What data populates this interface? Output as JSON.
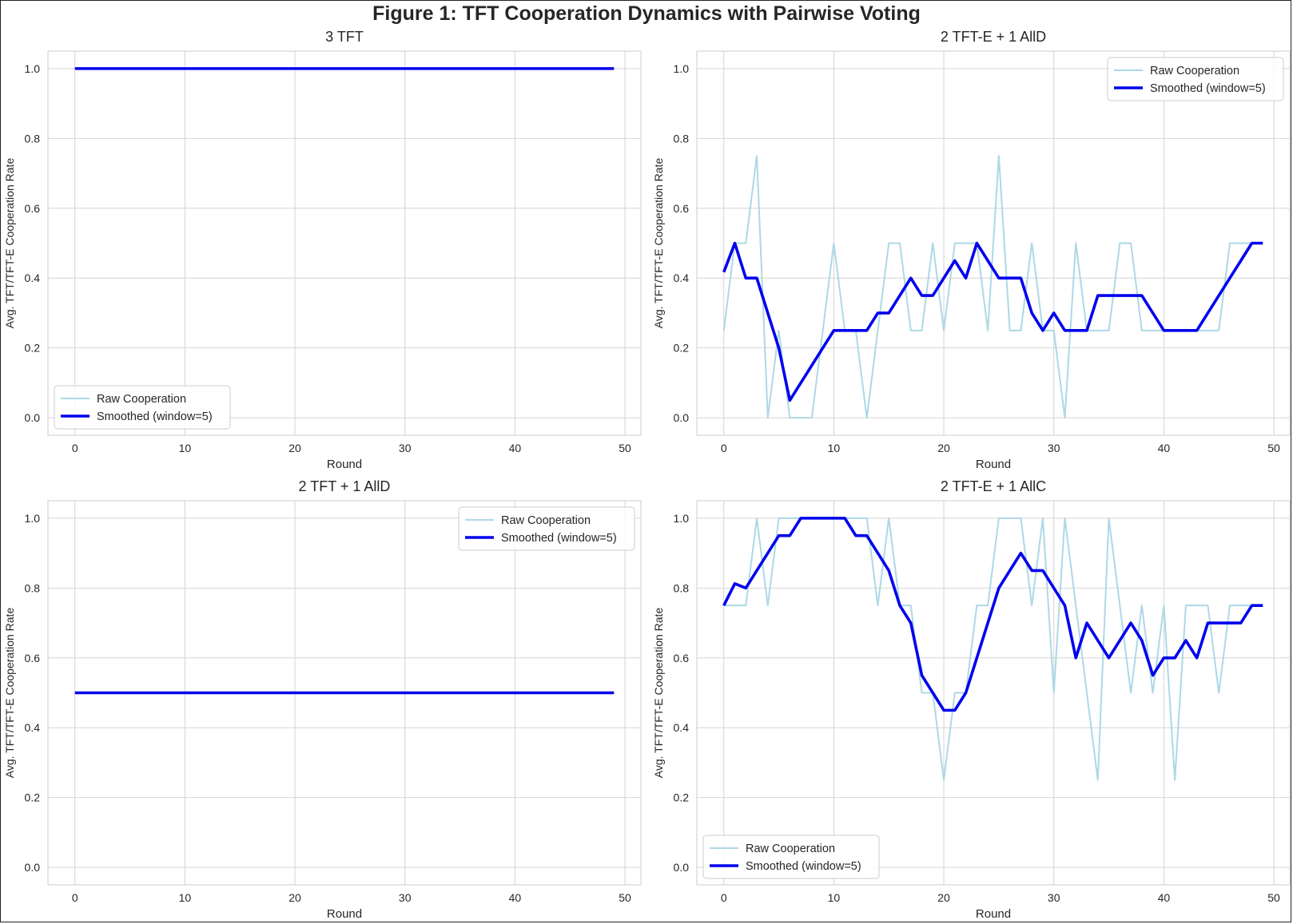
{
  "figure_title": "Figure 1: TFT Cooperation Dynamics with Pairwise Voting",
  "colors": {
    "raw": "#ADD8E6",
    "smoothed": "#0000EE",
    "grid": "#d4d4d4",
    "spine": "#cccccc",
    "text": "#262626"
  },
  "chart_data": [
    {
      "type": "line",
      "title": "3 TFT",
      "xlabel": "Round",
      "ylabel": "Avg. TFT/TFT-E Cooperation Rate",
      "xlim": [
        -2.45,
        51.45
      ],
      "ylim": [
        -0.05,
        1.05
      ],
      "xticks": [
        0,
        10,
        20,
        30,
        40,
        50
      ],
      "yticks": [
        0.0,
        0.2,
        0.4,
        0.6,
        0.8,
        1.0
      ],
      "grid": true,
      "legend_position": "lower left",
      "x": [
        0,
        1,
        2,
        3,
        4,
        5,
        6,
        7,
        8,
        9,
        10,
        11,
        12,
        13,
        14,
        15,
        16,
        17,
        18,
        19,
        20,
        21,
        22,
        23,
        24,
        25,
        26,
        27,
        28,
        29,
        30,
        31,
        32,
        33,
        34,
        35,
        36,
        37,
        38,
        39,
        40,
        41,
        42,
        43,
        44,
        45,
        46,
        47,
        48,
        49
      ],
      "series": [
        {
          "name": "Raw Cooperation",
          "values": [
            1,
            1,
            1,
            1,
            1,
            1,
            1,
            1,
            1,
            1,
            1,
            1,
            1,
            1,
            1,
            1,
            1,
            1,
            1,
            1,
            1,
            1,
            1,
            1,
            1,
            1,
            1,
            1,
            1,
            1,
            1,
            1,
            1,
            1,
            1,
            1,
            1,
            1,
            1,
            1,
            1,
            1,
            1,
            1,
            1,
            1,
            1,
            1,
            1,
            1
          ]
        },
        {
          "name": "Smoothed (window=5)",
          "values": [
            1,
            1,
            1,
            1,
            1,
            1,
            1,
            1,
            1,
            1,
            1,
            1,
            1,
            1,
            1,
            1,
            1,
            1,
            1,
            1,
            1,
            1,
            1,
            1,
            1,
            1,
            1,
            1,
            1,
            1,
            1,
            1,
            1,
            1,
            1,
            1,
            1,
            1,
            1,
            1,
            1,
            1,
            1,
            1,
            1,
            1,
            1,
            1,
            1,
            1
          ]
        }
      ]
    },
    {
      "type": "line",
      "title": "2 TFT-E + 1 AllD",
      "xlabel": "Round",
      "ylabel": "Avg. TFT/TFT-E Cooperation Rate",
      "xlim": [
        -2.45,
        51.45
      ],
      "ylim": [
        -0.05,
        1.05
      ],
      "xticks": [
        0,
        10,
        20,
        30,
        40,
        50
      ],
      "yticks": [
        0.0,
        0.2,
        0.4,
        0.6,
        0.8,
        1.0
      ],
      "grid": true,
      "legend_position": "upper right",
      "x": [
        0,
        1,
        2,
        3,
        4,
        5,
        6,
        7,
        8,
        9,
        10,
        11,
        12,
        13,
        14,
        15,
        16,
        17,
        18,
        19,
        20,
        21,
        22,
        23,
        24,
        25,
        26,
        27,
        28,
        29,
        30,
        31,
        32,
        33,
        34,
        35,
        36,
        37,
        38,
        39,
        40,
        41,
        42,
        43,
        44,
        45,
        46,
        47,
        48,
        49
      ],
      "series": [
        {
          "name": "Raw Cooperation",
          "values": [
            0.25,
            0.5,
            0.5,
            0.75,
            0,
            0.25,
            0,
            0,
            0,
            0.25,
            0.5,
            0.25,
            0.25,
            0,
            0.25,
            0.5,
            0.5,
            0.25,
            0.25,
            0.5,
            0.25,
            0.5,
            0.5,
            0.5,
            0.25,
            0.75,
            0.25,
            0.25,
            0.5,
            0.25,
            0.25,
            0,
            0.5,
            0.25,
            0.25,
            0.25,
            0.5,
            0.5,
            0.25,
            0.25,
            0.25,
            0.25,
            0.25,
            0.25,
            0.25,
            0.25,
            0.5,
            0.5,
            0.5,
            0.5
          ]
        },
        {
          "name": "Smoothed (window=5)",
          "values": [
            0.417,
            0.5,
            0.4,
            0.4,
            0.3,
            0.2,
            0.05,
            0.1,
            0.15,
            0.2,
            0.25,
            0.25,
            0.25,
            0.25,
            0.3,
            0.3,
            0.35,
            0.4,
            0.35,
            0.35,
            0.4,
            0.45,
            0.4,
            0.5,
            0.45,
            0.4,
            0.4,
            0.4,
            0.3,
            0.25,
            0.3,
            0.25,
            0.25,
            0.25,
            0.35,
            0.35,
            0.35,
            0.35,
            0.35,
            0.3,
            0.25,
            0.25,
            0.25,
            0.25,
            0.3,
            0.35,
            0.4,
            0.45,
            0.5,
            0.5
          ]
        }
      ]
    },
    {
      "type": "line",
      "title": "2 TFT + 1 AllD",
      "xlabel": "Round",
      "ylabel": "Avg. TFT/TFT-E Cooperation Rate",
      "xlim": [
        -2.45,
        51.45
      ],
      "ylim": [
        -0.05,
        1.05
      ],
      "xticks": [
        0,
        10,
        20,
        30,
        40,
        50
      ],
      "yticks": [
        0.0,
        0.2,
        0.4,
        0.6,
        0.8,
        1.0
      ],
      "grid": true,
      "legend_position": "upper right",
      "x": [
        0,
        1,
        2,
        3,
        4,
        5,
        6,
        7,
        8,
        9,
        10,
        11,
        12,
        13,
        14,
        15,
        16,
        17,
        18,
        19,
        20,
        21,
        22,
        23,
        24,
        25,
        26,
        27,
        28,
        29,
        30,
        31,
        32,
        33,
        34,
        35,
        36,
        37,
        38,
        39,
        40,
        41,
        42,
        43,
        44,
        45,
        46,
        47,
        48,
        49
      ],
      "series": [
        {
          "name": "Raw Cooperation",
          "values": [
            0.5,
            0.5,
            0.5,
            0.5,
            0.5,
            0.5,
            0.5,
            0.5,
            0.5,
            0.5,
            0.5,
            0.5,
            0.5,
            0.5,
            0.5,
            0.5,
            0.5,
            0.5,
            0.5,
            0.5,
            0.5,
            0.5,
            0.5,
            0.5,
            0.5,
            0.5,
            0.5,
            0.5,
            0.5,
            0.5,
            0.5,
            0.5,
            0.5,
            0.5,
            0.5,
            0.5,
            0.5,
            0.5,
            0.5,
            0.5,
            0.5,
            0.5,
            0.5,
            0.5,
            0.5,
            0.5,
            0.5,
            0.5,
            0.5,
            0.5
          ]
        },
        {
          "name": "Smoothed (window=5)",
          "values": [
            0.5,
            0.5,
            0.5,
            0.5,
            0.5,
            0.5,
            0.5,
            0.5,
            0.5,
            0.5,
            0.5,
            0.5,
            0.5,
            0.5,
            0.5,
            0.5,
            0.5,
            0.5,
            0.5,
            0.5,
            0.5,
            0.5,
            0.5,
            0.5,
            0.5,
            0.5,
            0.5,
            0.5,
            0.5,
            0.5,
            0.5,
            0.5,
            0.5,
            0.5,
            0.5,
            0.5,
            0.5,
            0.5,
            0.5,
            0.5,
            0.5,
            0.5,
            0.5,
            0.5,
            0.5,
            0.5,
            0.5,
            0.5,
            0.5,
            0.5
          ]
        }
      ]
    },
    {
      "type": "line",
      "title": "2 TFT-E + 1 AllC",
      "xlabel": "Round",
      "ylabel": "Avg. TFT/TFT-E Cooperation Rate",
      "xlim": [
        -2.45,
        51.45
      ],
      "ylim": [
        -0.05,
        1.05
      ],
      "xticks": [
        0,
        10,
        20,
        30,
        40,
        50
      ],
      "yticks": [
        0.0,
        0.2,
        0.4,
        0.6,
        0.8,
        1.0
      ],
      "grid": true,
      "legend_position": "lower left",
      "x": [
        0,
        1,
        2,
        3,
        4,
        5,
        6,
        7,
        8,
        9,
        10,
        11,
        12,
        13,
        14,
        15,
        16,
        17,
        18,
        19,
        20,
        21,
        22,
        23,
        24,
        25,
        26,
        27,
        28,
        29,
        30,
        31,
        32,
        33,
        34,
        35,
        36,
        37,
        38,
        39,
        40,
        41,
        42,
        43,
        44,
        45,
        46,
        47,
        48,
        49
      ],
      "series": [
        {
          "name": "Raw Cooperation",
          "values": [
            0.75,
            0.75,
            0.75,
            1,
            0.75,
            1,
            1,
            1,
            1,
            1,
            1,
            1,
            1,
            1,
            0.75,
            1,
            0.75,
            0.75,
            0.5,
            0.5,
            0.25,
            0.5,
            0.5,
            0.75,
            0.75,
            1,
            1,
            1,
            0.75,
            1,
            0.5,
            1,
            0.75,
            0.5,
            0.25,
            1,
            0.75,
            0.5,
            0.75,
            0.5,
            0.75,
            0.25,
            0.75,
            0.75,
            0.75,
            0.5,
            0.75,
            0.75,
            0.75,
            0.75
          ]
        },
        {
          "name": "Smoothed (window=5)",
          "values": [
            0.75,
            0.8125,
            0.8,
            0.85,
            0.9,
            0.95,
            0.95,
            1,
            1,
            1,
            1,
            1,
            0.95,
            0.95,
            0.9,
            0.85,
            0.75,
            0.7,
            0.55,
            0.5,
            0.45,
            0.45,
            0.5,
            0.6,
            0.7,
            0.8,
            0.85,
            0.9,
            0.85,
            0.85,
            0.8,
            0.75,
            0.6,
            0.7,
            0.65,
            0.6,
            0.65,
            0.7,
            0.65,
            0.55,
            0.6,
            0.6,
            0.65,
            0.6,
            0.7,
            0.7,
            0.7,
            0.7,
            0.75,
            0.75
          ]
        }
      ]
    }
  ]
}
